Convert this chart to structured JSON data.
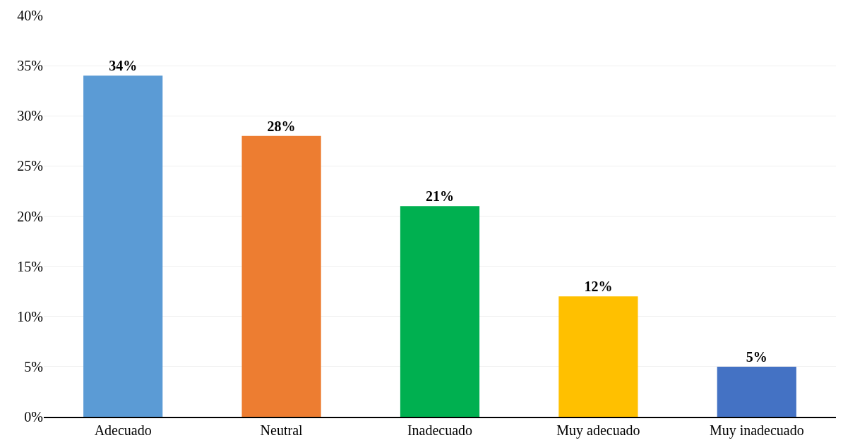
{
  "chart_data": {
    "type": "bar",
    "categories": [
      "Adecuado",
      "Neutral",
      "Inadecuado",
      "Muy adecuado",
      "Muy inadecuado"
    ],
    "values": [
      34,
      28,
      21,
      12,
      5
    ],
    "colors": [
      "#5b9bd5",
      "#ed7d31",
      "#00b050",
      "#ffc000",
      "#4472c4"
    ],
    "value_labels": [
      "34%",
      "28%",
      "21%",
      "12%",
      "5%"
    ],
    "ylim": [
      0,
      40
    ],
    "yticks": [
      {
        "value": 0,
        "label": "0%"
      },
      {
        "value": 5,
        "label": "5%"
      },
      {
        "value": 10,
        "label": "10%"
      },
      {
        "value": 15,
        "label": "15%"
      },
      {
        "value": 20,
        "label": "20%"
      },
      {
        "value": 25,
        "label": "25%"
      },
      {
        "value": 30,
        "label": "30%"
      },
      {
        "value": 35,
        "label": "35%"
      },
      {
        "value": 40,
        "label": "40%"
      }
    ],
    "grid": "y",
    "legend": false
  }
}
